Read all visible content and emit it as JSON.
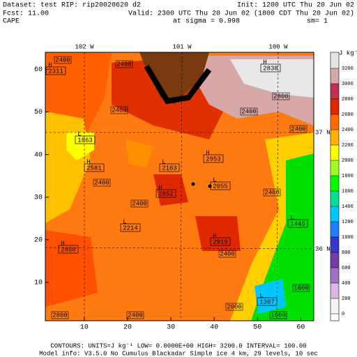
{
  "header": {
    "dataset": "Dataset: test   RIP: rip20020620 d2",
    "init": "Init: 1200 UTC Thu 20 Jun 02",
    "fcst": "Fcst:   11.00",
    "valid": "Valid: 2300 UTC Thu 20 Jun 02 (1800 CDT Thu 20 Jun 02)",
    "field": "CAPE",
    "level": "at sigma = 0.998",
    "smooth": "sm= 1"
  },
  "map": {
    "xlim": [
      1,
      63
    ],
    "ylim": [
      1,
      64
    ],
    "xticks": [
      10,
      20,
      30,
      40,
      50,
      60
    ],
    "yticks": [
      10,
      20,
      30,
      40,
      50,
      60
    ],
    "longitudes": [
      "102 W",
      "101 W",
      "100 W"
    ],
    "latitudes": [
      "37 N",
      "36 N"
    ],
    "extrema": [
      {
        "symbol": "H",
        "value": 2311
      },
      {
        "symbol": "H",
        "value": 2838
      },
      {
        "symbol": "L",
        "value": 1863
      },
      {
        "symbol": "H",
        "value": 2581
      },
      {
        "symbol": "L",
        "value": 2163
      },
      {
        "symbol": "H",
        "value": 2953
      },
      {
        "symbol": "H",
        "value": 2852
      },
      {
        "symbol": "L",
        "value": 2055
      },
      {
        "symbol": "L",
        "value": 2214
      },
      {
        "symbol": "H",
        "value": 2919
      },
      {
        "symbol": "H",
        "value": 2858
      },
      {
        "symbol": "L",
        "value": 1445
      },
      {
        "symbol": "L",
        "value": 1307
      }
    ],
    "contour_labels": [
      2400,
      2400,
      2400,
      2400,
      2400,
      2400,
      2400,
      2400,
      2400,
      2800,
      2800,
      2400,
      2000,
      1600,
      1600
    ]
  },
  "colorbar": {
    "units": "J kg⁻¹",
    "ticks": [
      3200,
      3000,
      2800,
      2600,
      2400,
      2200,
      2000,
      1800,
      1600,
      1400,
      1200,
      1000,
      800,
      600,
      400,
      200,
      0
    ],
    "colors": [
      "#f4f4f4",
      "#d8b8e0",
      "#a070c8",
      "#7040a8",
      "#3838c8",
      "#2080ff",
      "#00c8ff",
      "#00e090",
      "#00ff00",
      "#a0ff20",
      "#ffff00",
      "#ffb000",
      "#ff6a00",
      "#e02800",
      "#c03050",
      "#d8a8a8"
    ]
  },
  "footer": {
    "contours": "CONTOURS:  UNITS=J kg⁻¹   LOW= 0.0000E+00  HIGH=  3200.0      INTERVAL=   100.00",
    "model": "Model info: V3.5.0 No Cumulus Blackadar  Simple ice     4 km,  29 levels,  10 sec"
  }
}
